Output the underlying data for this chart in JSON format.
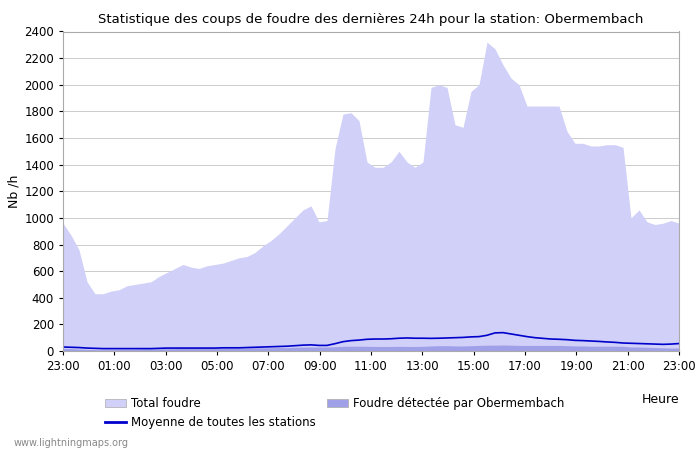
{
  "title": "Statistique des coups de foudre des dernières 24h pour la station: Obermembach",
  "xlabel": "Heure",
  "ylabel": "Nb /h",
  "watermark": "www.lightningmaps.org",
  "ylim": [
    0,
    2400
  ],
  "yticks": [
    0,
    200,
    400,
    600,
    800,
    1000,
    1200,
    1400,
    1600,
    1800,
    2000,
    2200,
    2400
  ],
  "x_labels": [
    "23:00",
    "01:00",
    "03:00",
    "05:00",
    "07:00",
    "09:00",
    "11:00",
    "13:00",
    "15:00",
    "17:00",
    "19:00",
    "21:00",
    "23:00"
  ],
  "total_foudre_color": "#d0d0f8",
  "local_foudre_color": "#a0a0e8",
  "moyenne_color": "#0000cc",
  "background_color": "#ffffff",
  "grid_color": "#cccccc",
  "total_foudre": [
    960,
    870,
    760,
    520,
    430,
    430,
    450,
    460,
    490,
    500,
    510,
    520,
    560,
    590,
    620,
    650,
    630,
    620,
    640,
    650,
    660,
    680,
    700,
    710,
    740,
    790,
    830,
    880,
    940,
    1000,
    1060,
    1090,
    970,
    980,
    1520,
    1780,
    1790,
    1730,
    1420,
    1380,
    1380,
    1420,
    1500,
    1420,
    1380,
    1420,
    1980,
    2000,
    1980,
    1700,
    1680,
    1950,
    2000,
    2320,
    2270,
    2150,
    2050,
    2000,
    1840,
    1840,
    1840,
    1840,
    1840,
    1650,
    1560,
    1560,
    1540,
    1540,
    1550,
    1550,
    1530,
    1000,
    1060,
    970,
    950,
    960,
    980,
    960
  ],
  "local_foudre": [
    20,
    18,
    15,
    12,
    10,
    10,
    10,
    12,
    12,
    12,
    14,
    15,
    16,
    18,
    18,
    20,
    20,
    20,
    20,
    20,
    22,
    22,
    22,
    22,
    24,
    24,
    25,
    26,
    26,
    28,
    30,
    30,
    30,
    30,
    32,
    35,
    36,
    36,
    35,
    34,
    34,
    34,
    35,
    34,
    34,
    35,
    38,
    40,
    40,
    38,
    38,
    40,
    42,
    44,
    44,
    45,
    44,
    42,
    42,
    42,
    42,
    42,
    42,
    40,
    38,
    38,
    36,
    36,
    36,
    36,
    35,
    30,
    30,
    28,
    26,
    24,
    22,
    22
  ],
  "moyenne": [
    30,
    28,
    26,
    22,
    20,
    18,
    18,
    18,
    18,
    18,
    18,
    18,
    20,
    22,
    22,
    22,
    22,
    22,
    22,
    22,
    24,
    24,
    24,
    26,
    28,
    30,
    32,
    34,
    36,
    40,
    44,
    46,
    42,
    42,
    55,
    70,
    78,
    82,
    88,
    90,
    90,
    92,
    96,
    98,
    96,
    96,
    95,
    96,
    98,
    100,
    102,
    106,
    108,
    118,
    136,
    138,
    128,
    118,
    108,
    100,
    95,
    90,
    88,
    85,
    80,
    78,
    75,
    72,
    68,
    65,
    60,
    58,
    56,
    54,
    52,
    50,
    52,
    56
  ]
}
